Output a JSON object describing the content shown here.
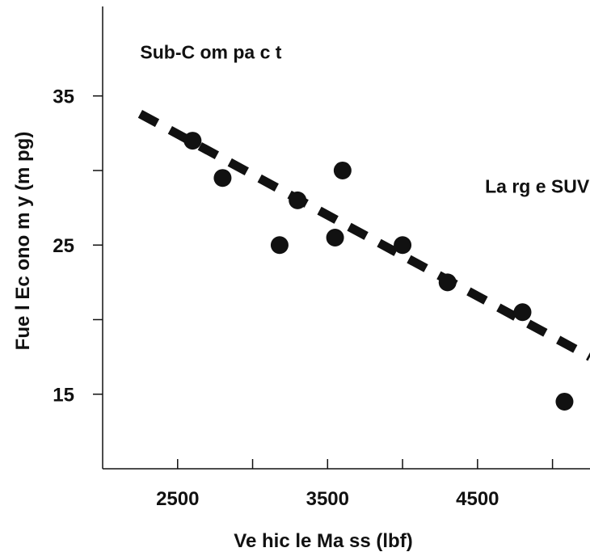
{
  "chart_data": {
    "type": "scatter",
    "title": "",
    "xlabel": "Ve hic le Ma ss (lbf)",
    "ylabel": "Fue l Ec ono m y (m pg)",
    "xlim": [
      2000,
      5250
    ],
    "ylim": [
      10,
      41
    ],
    "x_ticks": [
      2500,
      3000,
      3500,
      4000,
      4500,
      5000
    ],
    "x_tick_labels": [
      "2500",
      "",
      "3500",
      "",
      "4500",
      ""
    ],
    "y_ticks": [
      15,
      20,
      25,
      30,
      35
    ],
    "y_tick_labels": [
      "15",
      "",
      "25",
      "",
      "35"
    ],
    "grid": false,
    "legend": "none",
    "series": [
      {
        "points": [
          {
            "x": 2600,
            "y": 32.0
          },
          {
            "x": 2800,
            "y": 29.5
          },
          {
            "x": 3180,
            "y": 25.0
          },
          {
            "x": 3300,
            "y": 28.0
          },
          {
            "x": 3550,
            "y": 25.5
          },
          {
            "x": 3600,
            "y": 30.0
          },
          {
            "x": 4000,
            "y": 25.0
          },
          {
            "x": 4300,
            "y": 22.5
          },
          {
            "x": 4800,
            "y": 20.5
          },
          {
            "x": 5080,
            "y": 14.5
          }
        ],
        "color": "#111111"
      }
    ],
    "trendline": {
      "style": "dashed",
      "color": "#111111",
      "points": [
        {
          "x": 2250,
          "y": 33.8
        },
        {
          "x": 5250,
          "y": 17.5
        }
      ]
    },
    "annotations": [
      {
        "text": "Sub-C om pa c t",
        "x": 2250,
        "y": 37.5
      },
      {
        "text": "La rg e SUV",
        "x": 4550,
        "y": 28.5
      }
    ]
  }
}
